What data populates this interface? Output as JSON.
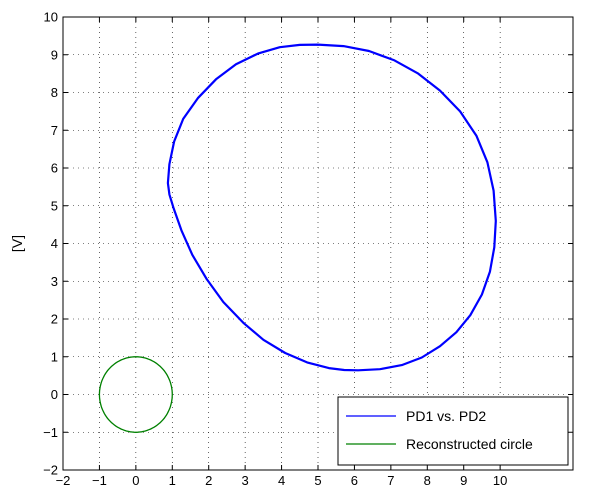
{
  "chart_data": {
    "type": "line",
    "title": "",
    "xlabel": "",
    "ylabel": "[V]",
    "xlim": [
      -2,
      12
    ],
    "ylim": [
      -2,
      10
    ],
    "xticks": [
      -2,
      -1,
      0,
      1,
      2,
      3,
      4,
      5,
      6,
      7,
      8,
      9,
      10
    ],
    "xtick_labels": [
      "−2",
      "−1",
      "0",
      "1",
      "2",
      "3",
      "4",
      "5",
      "6",
      "7",
      "8",
      "9",
      "10"
    ],
    "yticks": [
      -2,
      -1,
      0,
      1,
      2,
      3,
      4,
      5,
      6,
      7,
      8,
      9,
      10
    ],
    "ytick_labels": [
      "−2",
      "−1",
      "0",
      "1",
      "2",
      "3",
      "4",
      "5",
      "6",
      "7",
      "8",
      "9",
      "10"
    ],
    "grid": true,
    "legend_position": "bottom-right",
    "series": [
      {
        "name": "PD1 vs. PD2",
        "color": "#0000ff",
        "x": [
          5.0,
          5.7,
          6.4,
          7.1,
          7.75,
          8.35,
          8.9,
          9.35,
          9.65,
          9.82,
          9.88,
          9.84,
          9.72,
          9.5,
          9.18,
          8.8,
          8.35,
          7.85,
          7.3,
          6.7,
          6.1,
          5.72,
          5.3,
          4.7,
          4.1,
          3.5,
          2.95,
          2.4,
          1.95,
          1.55,
          1.25,
          1.03,
          0.92,
          0.88,
          0.92,
          1.05,
          1.3,
          1.7,
          2.2,
          2.75,
          3.35,
          3.95,
          4.5,
          5.0
        ],
        "y": [
          9.27,
          9.23,
          9.1,
          8.85,
          8.5,
          8.05,
          7.5,
          6.85,
          6.15,
          5.4,
          4.6,
          3.9,
          3.25,
          2.65,
          2.1,
          1.65,
          1.28,
          0.98,
          0.78,
          0.67,
          0.64,
          0.65,
          0.7,
          0.85,
          1.1,
          1.45,
          1.9,
          2.45,
          3.05,
          3.7,
          4.35,
          4.95,
          5.3,
          5.6,
          6.1,
          6.7,
          7.3,
          7.85,
          8.35,
          8.75,
          9.03,
          9.2,
          9.26,
          9.27
        ]
      },
      {
        "name": "Reconstructed circle",
        "color": "#008000",
        "center": [
          0,
          0
        ],
        "radius": 1
      }
    ]
  }
}
